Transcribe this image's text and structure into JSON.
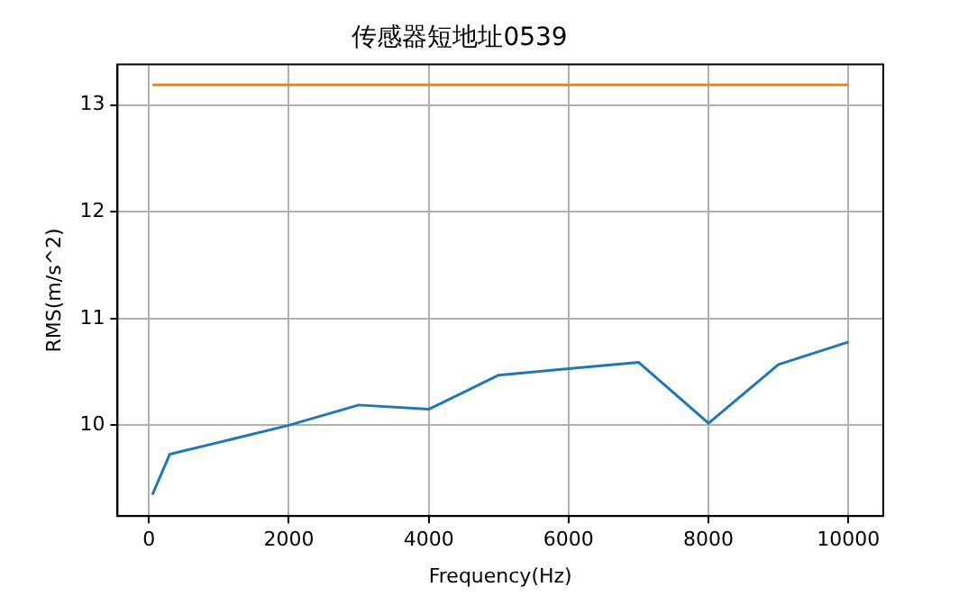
{
  "chart_data": {
    "type": "line",
    "title": "传感器短地址0539",
    "xlabel": "Frequency(Hz)",
    "ylabel": "RMS(m/s^2)",
    "series": [
      {
        "color": "#1f77b4",
        "x": [
          50,
          300,
          1000,
          2000,
          3000,
          4000,
          5000,
          6000,
          7000,
          8000,
          9000,
          10000
        ],
        "values": [
          9.35,
          9.73,
          9.84,
          10.0,
          10.19,
          10.15,
          10.47,
          10.53,
          10.59,
          10.02,
          10.57,
          10.78
        ]
      },
      {
        "color": "#ff7f0e",
        "x": [
          50,
          10000
        ],
        "values": [
          13.19,
          13.19
        ]
      }
    ],
    "xlim": [
      -448,
      10498
    ],
    "ylim": [
      9.15,
      13.38
    ],
    "xticks": [
      0,
      2000,
      4000,
      6000,
      8000,
      10000
    ],
    "yticks": [
      10,
      11,
      12,
      13
    ],
    "grid": true,
    "legend": false,
    "marker": "none",
    "line_style": "solid"
  }
}
